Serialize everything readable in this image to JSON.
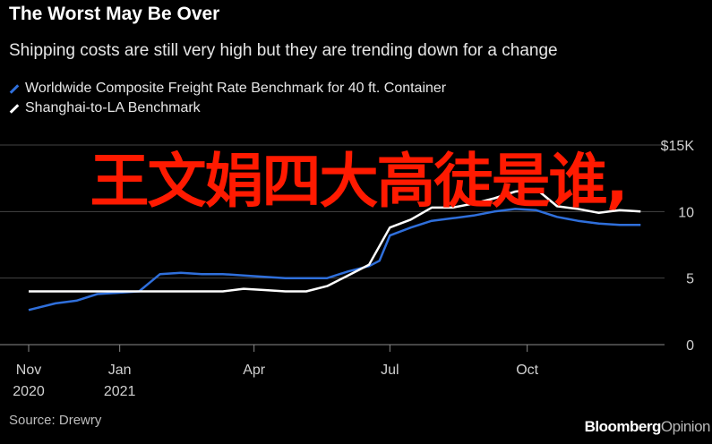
{
  "header": {
    "title": "The Worst May Be Over",
    "subtitle": "Shipping costs are still very high but they are trending down for a change"
  },
  "legend": [
    {
      "label": "Worldwide Composite Freight Rate Benchmark for 40 ft. Container",
      "color": "#2f6fdb"
    },
    {
      "label": "Shanghai-to-LA Benchmark",
      "color": "#ffffff"
    }
  ],
  "footer": {
    "source": "Source: Drewry",
    "brand_primary": "Bloomberg",
    "brand_secondary": "Opinion"
  },
  "overlay_text": "王文娟四大高徒是谁,",
  "colors": {
    "background": "#000000",
    "gridline": "#444444",
    "series_blue": "#2f6fdb",
    "series_white": "#ffffff",
    "overlay": "#ff1a00"
  },
  "chart_data": {
    "type": "line",
    "title": "The Worst May Be Over",
    "subtitle": "Shipping costs are still very high but they are trending down for a change",
    "ylim": [
      0,
      15
    ],
    "y_ticks": [
      0,
      5,
      10,
      15
    ],
    "y_tick_labels": [
      "0",
      "5",
      "10",
      "$15K"
    ],
    "y_axis_side": "right",
    "grid": true,
    "legend_position": "top-left",
    "x_ticks": [
      {
        "label": "Nov",
        "label2": "2020",
        "date": "2020-11-01"
      },
      {
        "label": "Jan",
        "label2": "2021",
        "date": "2021-01-01"
      },
      {
        "label": "Apr",
        "label2": "",
        "date": "2021-04-01"
      },
      {
        "label": "Jul",
        "label2": "",
        "date": "2021-07-01"
      },
      {
        "label": "Oct",
        "label2": "",
        "date": "2021-10-01"
      }
    ],
    "x_range": [
      "2020-11-01",
      "2022-01-01"
    ],
    "series": [
      {
        "name": "Worldwide Composite Freight Rate Benchmark for 40 ft. Container",
        "color": "#2f6fdb",
        "points": [
          [
            "2020-11-01",
            2.6
          ],
          [
            "2020-11-19",
            3.1
          ],
          [
            "2020-12-03",
            3.3
          ],
          [
            "2020-12-17",
            3.8
          ],
          [
            "2021-01-14",
            4.0
          ],
          [
            "2021-01-28",
            5.3
          ],
          [
            "2021-02-11",
            5.4
          ],
          [
            "2021-02-25",
            5.3
          ],
          [
            "2021-03-11",
            5.3
          ],
          [
            "2021-03-25",
            5.2
          ],
          [
            "2021-04-08",
            5.1
          ],
          [
            "2021-04-22",
            5.0
          ],
          [
            "2021-05-06",
            5.0
          ],
          [
            "2021-05-20",
            5.0
          ],
          [
            "2021-06-03",
            5.5
          ],
          [
            "2021-06-17",
            5.9
          ],
          [
            "2021-06-24",
            6.3
          ],
          [
            "2021-07-01",
            8.2
          ],
          [
            "2021-07-15",
            8.8
          ],
          [
            "2021-07-29",
            9.3
          ],
          [
            "2021-08-12",
            9.5
          ],
          [
            "2021-08-26",
            9.7
          ],
          [
            "2021-09-09",
            10.0
          ],
          [
            "2021-09-23",
            10.2
          ],
          [
            "2021-10-07",
            10.1
          ],
          [
            "2021-10-21",
            9.6
          ],
          [
            "2021-11-04",
            9.3
          ],
          [
            "2021-11-18",
            9.1
          ],
          [
            "2021-12-02",
            9.0
          ],
          [
            "2021-12-16",
            9.0
          ]
        ]
      },
      {
        "name": "Shanghai-to-LA Benchmark",
        "color": "#ffffff",
        "points": [
          [
            "2020-11-01",
            4.0
          ],
          [
            "2020-12-03",
            4.0
          ],
          [
            "2020-12-17",
            4.0
          ],
          [
            "2021-01-01",
            4.0
          ],
          [
            "2021-02-11",
            4.0
          ],
          [
            "2021-03-11",
            4.0
          ],
          [
            "2021-03-25",
            4.2
          ],
          [
            "2021-04-08",
            4.1
          ],
          [
            "2021-04-22",
            4.0
          ],
          [
            "2021-05-06",
            4.0
          ],
          [
            "2021-05-20",
            4.4
          ],
          [
            "2021-06-03",
            5.2
          ],
          [
            "2021-06-17",
            6.0
          ],
          [
            "2021-07-01",
            8.8
          ],
          [
            "2021-07-15",
            9.4
          ],
          [
            "2021-07-29",
            10.3
          ],
          [
            "2021-08-12",
            10.3
          ],
          [
            "2021-08-26",
            10.6
          ],
          [
            "2021-09-09",
            11.0
          ],
          [
            "2021-09-23",
            11.5
          ],
          [
            "2021-10-07",
            11.7
          ],
          [
            "2021-10-21",
            10.4
          ],
          [
            "2021-11-04",
            10.2
          ],
          [
            "2021-11-18",
            9.9
          ],
          [
            "2021-12-02",
            10.1
          ],
          [
            "2021-12-16",
            10.0
          ]
        ]
      }
    ]
  }
}
